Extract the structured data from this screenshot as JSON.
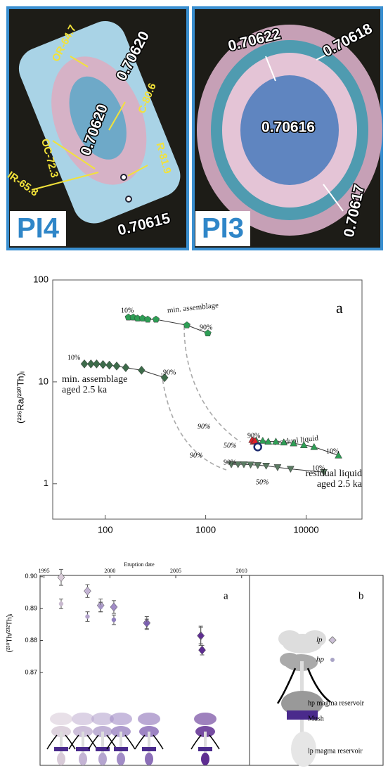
{
  "panels": [
    {
      "label": "PI4",
      "annotations": [
        "OR-64.7",
        "0.70620",
        "C-80.6",
        "0.70620",
        "OC-72.3",
        "R-81.9",
        "IR-65.8",
        "0.70615"
      ]
    },
    {
      "label": "PI3",
      "annotations": [
        "0.70622",
        "0.70618",
        "0.70616",
        "0.70617"
      ]
    }
  ],
  "chart_data": [
    {
      "type": "scatter",
      "panel_label": "a",
      "y_label": "(²²⁶Ra/²³⁰Th)ᵢ",
      "log_x": true,
      "log_y": true,
      "xlim": [
        30,
        36000
      ],
      "ylim": [
        0.45,
        100
      ],
      "xticks": [
        100,
        1000,
        10000
      ],
      "yticks": [
        1,
        10,
        100
      ],
      "annotations": [
        "10%",
        "90%",
        "10%",
        "90%",
        "90%",
        "50%",
        "90%",
        "90%",
        "10%",
        "90%",
        "50%",
        "10%"
      ],
      "series": [
        {
          "name": "min. assemblage",
          "color": "#2e9e55",
          "marker": "pentagon",
          "line": true,
          "x": [
            170,
            190,
            210,
            235,
            265,
            320,
            650,
            1050
          ],
          "y": [
            43,
            43,
            42,
            42,
            41,
            41,
            36,
            30
          ]
        },
        {
          "name": "min. assemblage aged 2.5 ka",
          "color": "#3d6b4a",
          "marker": "diamond",
          "line": true,
          "x": [
            62,
            72,
            82,
            95,
            110,
            130,
            160,
            230,
            390
          ],
          "y": [
            15,
            15,
            15,
            14.8,
            14.6,
            14.3,
            13.8,
            13,
            11
          ]
        },
        {
          "name": "residual liquid",
          "color": "#2e9e55",
          "marker": "triangle-up",
          "line": true,
          "x": [
            3200,
            3700,
            4200,
            5000,
            6000,
            7500,
            9500,
            12000,
            21000
          ],
          "y": [
            2.65,
            2.65,
            2.6,
            2.6,
            2.55,
            2.5,
            2.4,
            2.3,
            1.9
          ]
        },
        {
          "name": "residual liquid aged 2.5 ka",
          "color": "#5a7a62",
          "marker": "triangle-down",
          "line": true,
          "x": [
            1800,
            2100,
            2400,
            2800,
            3300,
            4000,
            5200,
            7000,
            15000
          ],
          "y": [
            1.55,
            1.55,
            1.55,
            1.54,
            1.52,
            1.5,
            1.45,
            1.4,
            1.3
          ]
        },
        {
          "color": "#e0202a",
          "marker": "triangle-up",
          "line": false,
          "x": [
            2900,
            3000,
            3100
          ],
          "y": [
            2.7,
            2.6,
            2.65
          ]
        },
        {
          "color": "#1c2a6e",
          "marker": "circle-open",
          "line": false,
          "x": [
            3300
          ],
          "y": [
            2.3
          ]
        }
      ]
    },
    {
      "type": "errorbar",
      "panel_label": "a",
      "panel_label_2": "b",
      "x_label": "Eruption date",
      "y_label": "(²³⁰Th/²³²Th)ᵢ",
      "xlim": [
        1994.7,
        2010.6
      ],
      "ylim": [
        0.8409,
        0.9004
      ],
      "xticks": [
        1995,
        2000,
        2005,
        2010
      ],
      "yticks": [
        0.87,
        0.88,
        0.89,
        {
          "value": 0.9,
          "label": "0.90"
        }
      ],
      "legend_labels": [
        "lp",
        "hp"
      ],
      "sketch_labels": [
        "hp magma reservoir",
        "Mush",
        "lp magma reservoir"
      ],
      "series": [
        {
          "name": "lp",
          "marker": "diamond",
          "x": [
            1996.3,
            1998.3,
            1999.3,
            2000.3,
            2002.8,
            2006.9,
            2007.0
          ],
          "values": [
            0.8998,
            0.8955,
            0.891,
            0.8905,
            0.8855,
            0.8815,
            0.877
          ],
          "errors": [
            0.0025,
            0.002,
            0.002,
            0.002,
            0.002,
            0.0025,
            0.0015
          ],
          "colors": [
            "#d8cbd8",
            "#c4b4d4",
            "#b5a5cf",
            "#a18cc6",
            "#8c6fb8",
            "#6d3f9e",
            "#5e2d91"
          ]
        },
        {
          "name": "hp",
          "marker": "circle",
          "x": [
            1996.3,
            1998.3,
            1999.3,
            2000.3,
            2002.8,
            2006.9
          ],
          "values": [
            0.8915,
            0.8875,
            0.8905,
            0.8865,
            0.8852,
            0.8815
          ],
          "errors": [
            0.0015,
            0.0015,
            0.0015,
            0.0015,
            0.0015,
            0.003
          ],
          "colors": [
            "#c9bad0",
            "#b4a4cc",
            "#a595c6",
            "#9180be",
            "#7b60b0",
            "#5e2d91"
          ]
        }
      ]
    }
  ]
}
